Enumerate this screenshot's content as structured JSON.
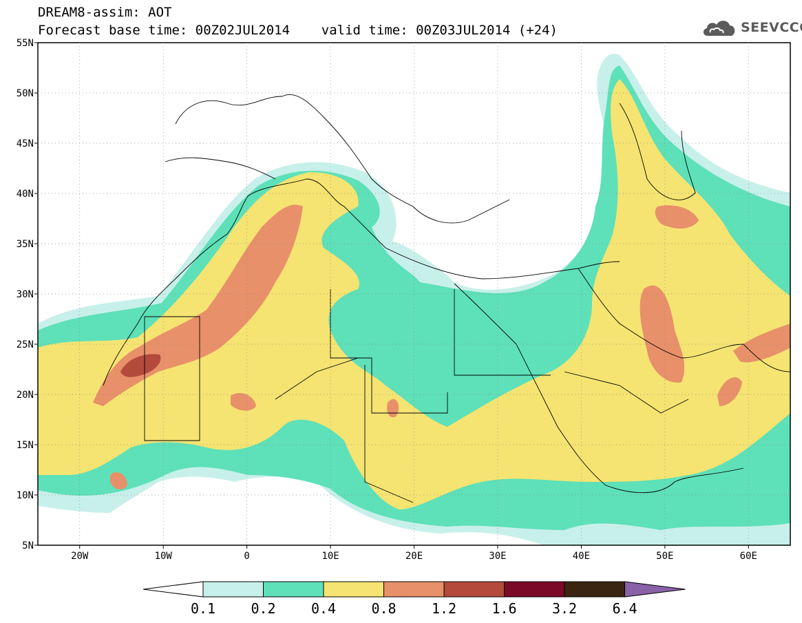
{
  "header": {
    "line1": "DREAM8-assim: AOT",
    "line2": "Forecast base time: 00Z02JUL2014    valid time: 00Z03JUL2014 (+24)"
  },
  "logo": {
    "text": "SEEVCCC",
    "icon": "cloud-icon"
  },
  "map": {
    "lon_range": [
      -25,
      65
    ],
    "lat_range": [
      5,
      55
    ],
    "lat_labels": [
      "5N",
      "10N",
      "15N",
      "20N",
      "25N",
      "30N",
      "35N",
      "40N",
      "45N",
      "50N",
      "55N"
    ],
    "lon_labels": [
      "20W",
      "10W",
      "0",
      "10E",
      "20E",
      "30E",
      "40E",
      "50E",
      "60E"
    ],
    "grid": "dotted"
  },
  "colorbar": {
    "labels": [
      "0.1",
      "0.2",
      "0.4",
      "0.8",
      "1.2",
      "1.6",
      "3.2",
      "6.4"
    ],
    "colors": [
      "#ffffff",
      "#c8f0ea",
      "#5ee0b8",
      "#f5e472",
      "#e8906a",
      "#b44a3c",
      "#7a0a26",
      "#3a2610",
      "#8a62a8"
    ]
  }
}
